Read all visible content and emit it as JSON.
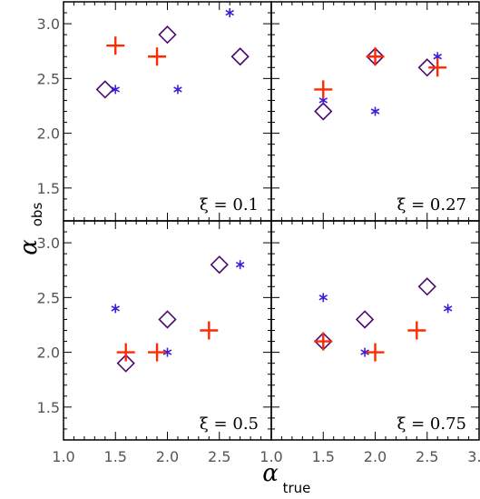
{
  "chart_data": {
    "type": "scatter",
    "layout": "2x2 panel grid, shared axes",
    "xlim": [
      1.0,
      3.0
    ],
    "ylim": [
      1.2,
      3.2
    ],
    "xticks": [
      "1.0",
      "1.5",
      "2.0",
      "2.5"
    ],
    "xticks_right": [
      "1.0",
      "1.5",
      "2.0",
      "2.5",
      "3.0"
    ],
    "yticks": [
      "1.5",
      "2.0",
      "2.5",
      "3.0"
    ],
    "xlabel": {
      "symbol": "α",
      "sub": "true"
    },
    "ylabel": {
      "symbol": "α",
      "sub": "obs"
    },
    "markers": {
      "plus": {
        "color": "#ff2a00",
        "shape": "plus"
      },
      "asterisk": {
        "color": "#3a1fd6",
        "shape": "asterisk"
      },
      "diamond": {
        "color": "#4a0a6e",
        "shape": "diamond-open"
      }
    },
    "panels": [
      {
        "id": "top-left",
        "label": "ξ  =  0.1",
        "plus": [
          [
            1.5,
            2.8
          ],
          [
            1.9,
            2.7
          ]
        ],
        "asterisk": [
          [
            1.5,
            2.4
          ],
          [
            2.1,
            2.4
          ],
          [
            2.6,
            3.1
          ]
        ],
        "diamond": [
          [
            1.4,
            2.4
          ],
          [
            2.0,
            2.9
          ],
          [
            2.7,
            2.7
          ]
        ]
      },
      {
        "id": "top-right",
        "label": "ξ  =  0.27",
        "plus": [
          [
            1.5,
            2.4
          ],
          [
            2.0,
            2.7
          ],
          [
            2.6,
            2.6
          ]
        ],
        "asterisk": [
          [
            1.5,
            2.3
          ],
          [
            2.0,
            2.2
          ],
          [
            2.6,
            2.7
          ]
        ],
        "diamond": [
          [
            1.5,
            2.2
          ],
          [
            2.0,
            2.7
          ],
          [
            2.5,
            2.6
          ]
        ]
      },
      {
        "id": "bottom-left",
        "label": "ξ  =  0.5",
        "plus": [
          [
            1.6,
            2.0
          ],
          [
            1.9,
            2.0
          ],
          [
            2.4,
            2.2
          ]
        ],
        "asterisk": [
          [
            1.5,
            2.4
          ],
          [
            2.0,
            2.0
          ],
          [
            2.7,
            2.8
          ]
        ],
        "diamond": [
          [
            1.6,
            1.9
          ],
          [
            2.0,
            2.3
          ],
          [
            2.5,
            2.8
          ]
        ]
      },
      {
        "id": "bottom-right",
        "label": "ξ  =  0.75",
        "plus": [
          [
            1.5,
            2.1
          ],
          [
            2.0,
            2.0
          ],
          [
            2.4,
            2.2
          ]
        ],
        "asterisk": [
          [
            1.5,
            2.5
          ],
          [
            1.9,
            2.0
          ],
          [
            2.7,
            2.4
          ]
        ],
        "diamond": [
          [
            1.5,
            2.1
          ],
          [
            1.9,
            2.3
          ],
          [
            2.5,
            2.6
          ]
        ]
      }
    ]
  }
}
